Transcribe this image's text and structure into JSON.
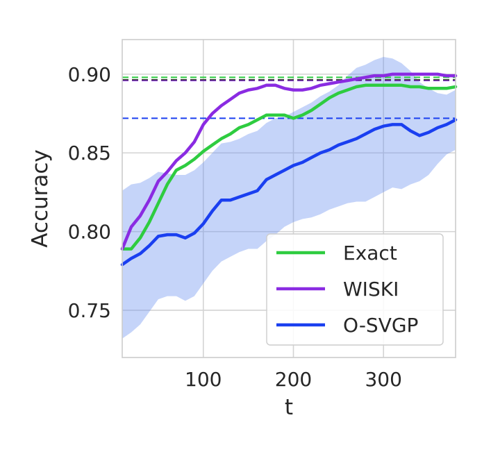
{
  "chart_data": {
    "type": "line",
    "title": "",
    "xlabel": "t",
    "ylabel": "Accuracy",
    "xlim": [
      10,
      380
    ],
    "ylim": [
      0.72,
      0.922
    ],
    "xticks": [
      100,
      200,
      300
    ],
    "xtick_labels": [
      "100",
      "200",
      "300"
    ],
    "yticks": [
      0.75,
      0.8,
      0.85,
      0.9
    ],
    "ytick_labels": [
      "0.75",
      "0.80",
      "0.85",
      "0.90"
    ],
    "grid": true,
    "legend_position": "bottom-right",
    "series": [
      {
        "name": "Exact",
        "color": "#2ecc40",
        "x": [
          10,
          20,
          30,
          40,
          50,
          60,
          70,
          80,
          90,
          100,
          110,
          120,
          130,
          140,
          150,
          160,
          170,
          180,
          190,
          200,
          210,
          220,
          230,
          240,
          250,
          260,
          270,
          280,
          290,
          300,
          310,
          320,
          330,
          340,
          350,
          360,
          370,
          380
        ],
        "y": [
          0.789,
          0.789,
          0.796,
          0.806,
          0.818,
          0.83,
          0.839,
          0.842,
          0.846,
          0.851,
          0.855,
          0.859,
          0.862,
          0.866,
          0.868,
          0.871,
          0.874,
          0.874,
          0.874,
          0.872,
          0.874,
          0.877,
          0.881,
          0.885,
          0.888,
          0.89,
          0.892,
          0.893,
          0.893,
          0.893,
          0.893,
          0.893,
          0.892,
          0.892,
          0.891,
          0.891,
          0.891,
          0.892
        ]
      },
      {
        "name": "WISKI",
        "color": "#8a2be2",
        "x": [
          10,
          20,
          30,
          40,
          50,
          60,
          70,
          80,
          90,
          100,
          110,
          120,
          130,
          140,
          150,
          160,
          170,
          180,
          190,
          200,
          210,
          220,
          230,
          240,
          250,
          260,
          270,
          280,
          290,
          300,
          310,
          320,
          330,
          340,
          350,
          360,
          370,
          380
        ],
        "y": [
          0.789,
          0.803,
          0.81,
          0.82,
          0.832,
          0.838,
          0.845,
          0.85,
          0.857,
          0.868,
          0.875,
          0.88,
          0.884,
          0.888,
          0.89,
          0.891,
          0.893,
          0.893,
          0.891,
          0.89,
          0.89,
          0.891,
          0.893,
          0.894,
          0.895,
          0.896,
          0.897,
          0.898,
          0.899,
          0.899,
          0.9,
          0.9,
          0.9,
          0.9,
          0.9,
          0.9,
          0.899,
          0.899
        ]
      },
      {
        "name": "O-SVGP",
        "color": "#1a3ff0",
        "x": [
          10,
          20,
          30,
          40,
          50,
          60,
          70,
          80,
          90,
          100,
          110,
          120,
          130,
          140,
          150,
          160,
          170,
          180,
          190,
          200,
          210,
          220,
          230,
          240,
          250,
          260,
          270,
          280,
          290,
          300,
          310,
          320,
          330,
          340,
          350,
          360,
          370,
          380
        ],
        "y": [
          0.779,
          0.783,
          0.786,
          0.791,
          0.797,
          0.798,
          0.798,
          0.796,
          0.799,
          0.805,
          0.813,
          0.82,
          0.82,
          0.822,
          0.824,
          0.826,
          0.833,
          0.836,
          0.839,
          0.842,
          0.844,
          0.847,
          0.85,
          0.852,
          0.855,
          0.857,
          0.859,
          0.862,
          0.865,
          0.867,
          0.868,
          0.868,
          0.864,
          0.861,
          0.863,
          0.866,
          0.868,
          0.871
        ]
      }
    ],
    "band": {
      "color": "#6f94ef",
      "opacity": 0.4,
      "x": [
        10,
        20,
        30,
        40,
        50,
        60,
        70,
        80,
        90,
        100,
        110,
        120,
        130,
        140,
        150,
        160,
        170,
        180,
        190,
        200,
        210,
        220,
        230,
        240,
        250,
        260,
        270,
        280,
        290,
        300,
        310,
        320,
        330,
        340,
        350,
        360,
        370,
        380
      ],
      "lower": [
        0.732,
        0.736,
        0.741,
        0.749,
        0.757,
        0.759,
        0.759,
        0.756,
        0.759,
        0.767,
        0.775,
        0.781,
        0.784,
        0.787,
        0.789,
        0.789,
        0.794,
        0.798,
        0.803,
        0.806,
        0.808,
        0.809,
        0.811,
        0.814,
        0.816,
        0.818,
        0.819,
        0.819,
        0.822,
        0.825,
        0.828,
        0.827,
        0.83,
        0.832,
        0.836,
        0.843,
        0.849,
        0.852
      ],
      "upper": [
        0.826,
        0.83,
        0.831,
        0.834,
        0.838,
        0.837,
        0.836,
        0.836,
        0.839,
        0.844,
        0.85,
        0.856,
        0.857,
        0.859,
        0.862,
        0.864,
        0.869,
        0.872,
        0.873,
        0.876,
        0.879,
        0.882,
        0.886,
        0.889,
        0.893,
        0.899,
        0.904,
        0.906,
        0.909,
        0.911,
        0.91,
        0.907,
        0.902,
        0.895,
        0.891,
        0.888,
        0.887,
        0.89
      ]
    },
    "reference_lines": [
      {
        "series": "Exact",
        "y": 0.898,
        "color": "#2ecc40"
      },
      {
        "series": "WISKI",
        "y": 0.896,
        "color": "#8a2be2"
      },
      {
        "series": "O-SVGP",
        "y": 0.872,
        "color": "#1a3ff0"
      },
      {
        "series": "Exact",
        "y": 0.8965,
        "color": "#444444"
      }
    ]
  }
}
